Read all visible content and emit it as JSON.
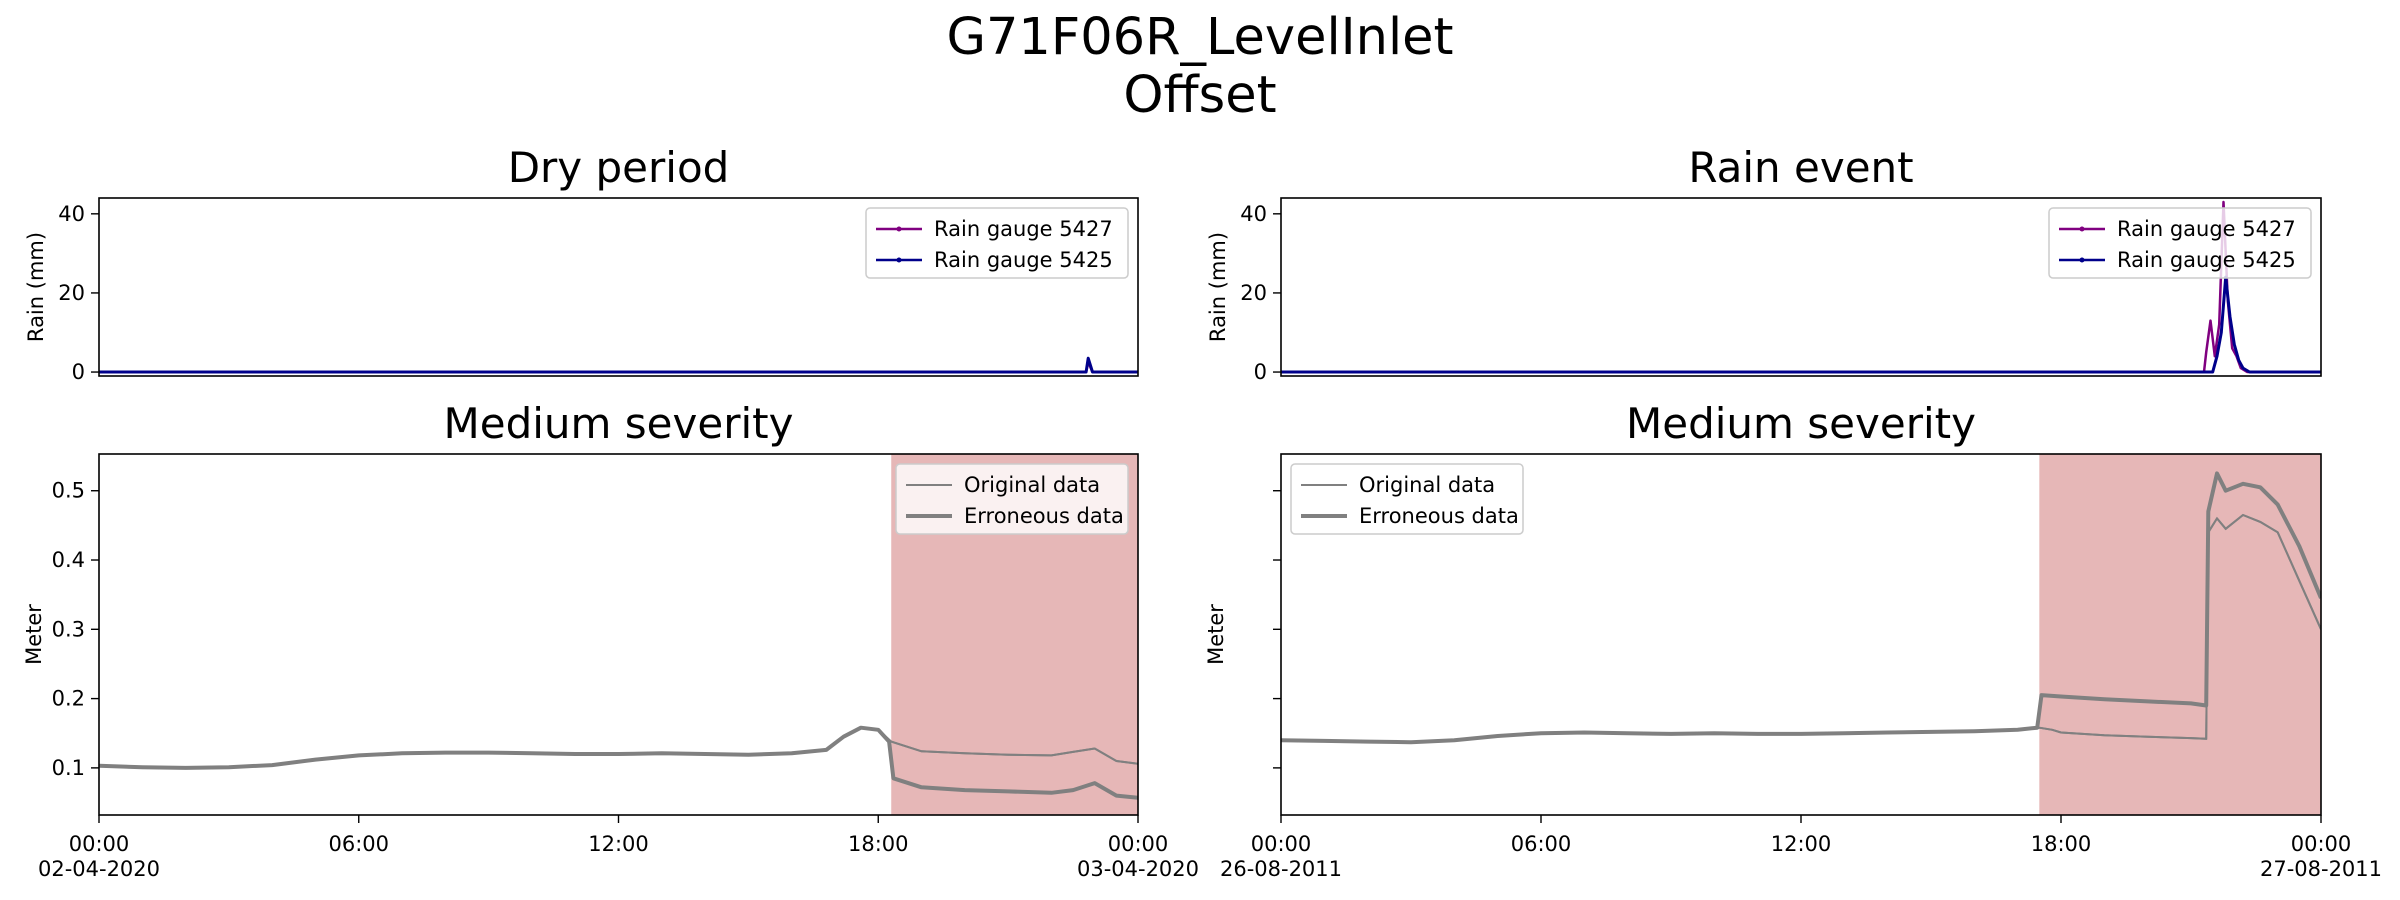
{
  "figure": {
    "title_line1": "G71F06R_LevelInlet",
    "title_line2": "Offset"
  },
  "colors": {
    "rain_5427": "#800080",
    "rain_5425": "#00008b",
    "original": "#808080",
    "erroneous": "#808080",
    "shade": "#cd7070"
  },
  "chart_data": [
    {
      "type": "line",
      "title": "Dry period",
      "ylabel": "Rain (mm)",
      "ylim": [
        -1,
        44
      ],
      "yticks": [
        0,
        20,
        40
      ],
      "legend": "upper right",
      "series": [
        {
          "name": "Rain gauge 5427",
          "x_hours": [
            0,
            22.8,
            22.85,
            22.95,
            24
          ],
          "values": [
            0,
            0,
            2.5,
            0,
            0
          ]
        },
        {
          "name": "Rain gauge 5425",
          "x_hours": [
            0,
            22.8,
            22.85,
            22.95,
            24
          ],
          "values": [
            0,
            0,
            3.5,
            0,
            0
          ]
        }
      ]
    },
    {
      "type": "line",
      "title": "Medium severity",
      "ylabel": "Meter",
      "ylim": [
        0.032,
        0.553
      ],
      "yticks": [
        0.1,
        0.2,
        0.3,
        0.4,
        0.5
      ],
      "xticks": [
        {
          "hour": 0,
          "label": "00:00",
          "date": "02-04-2020"
        },
        {
          "hour": 6,
          "label": "06:00",
          "date": ""
        },
        {
          "hour": 12,
          "label": "12:00",
          "date": ""
        },
        {
          "hour": 18,
          "label": "18:00",
          "date": ""
        },
        {
          "hour": 24,
          "label": "00:00",
          "date": "03-04-2020"
        }
      ],
      "legend": "upper right",
      "shaded_region_hours": [
        18.3,
        24
      ],
      "series": [
        {
          "name": "Original data",
          "x_hours": [
            0,
            1,
            2,
            3,
            4,
            5,
            6,
            7,
            8,
            9,
            10,
            11,
            12,
            13,
            14,
            15,
            16,
            16.8,
            17.2,
            17.6,
            18,
            18.3,
            19,
            20,
            21,
            22,
            22.5,
            23,
            23.5,
            24
          ],
          "values": [
            0.103,
            0.101,
            0.1,
            0.101,
            0.104,
            0.112,
            0.118,
            0.121,
            0.122,
            0.122,
            0.121,
            0.12,
            0.12,
            0.121,
            0.12,
            0.119,
            0.121,
            0.126,
            0.145,
            0.158,
            0.155,
            0.138,
            0.124,
            0.121,
            0.119,
            0.118,
            0.123,
            0.128,
            0.11,
            0.106
          ]
        },
        {
          "name": "Erroneous data",
          "x_hours": [
            0,
            1,
            2,
            3,
            4,
            5,
            6,
            7,
            8,
            9,
            10,
            11,
            12,
            13,
            14,
            15,
            16,
            16.8,
            17.2,
            17.6,
            18,
            18.25,
            18.35,
            19,
            20,
            21,
            22,
            22.5,
            23,
            23.5,
            24
          ],
          "values": [
            0.103,
            0.101,
            0.1,
            0.101,
            0.104,
            0.112,
            0.118,
            0.121,
            0.122,
            0.122,
            0.121,
            0.12,
            0.12,
            0.121,
            0.12,
            0.119,
            0.121,
            0.126,
            0.145,
            0.158,
            0.155,
            0.138,
            0.085,
            0.072,
            0.068,
            0.066,
            0.064,
            0.068,
            0.078,
            0.06,
            0.057
          ]
        }
      ]
    },
    {
      "type": "line",
      "title": "Rain event",
      "ylabel": "Rain (mm)",
      "ylim": [
        -1,
        44
      ],
      "yticks": [
        0,
        20,
        40
      ],
      "legend": "upper right",
      "series": [
        {
          "name": "Rain gauge 5427",
          "x_hours": [
            0,
            21.3,
            21.35,
            21.45,
            21.55,
            21.65,
            21.75,
            21.85,
            21.95,
            22.05,
            22.15,
            22.3,
            24
          ],
          "values": [
            0,
            0,
            5,
            13,
            4,
            12,
            43,
            18,
            6,
            4,
            1,
            0,
            0
          ]
        },
        {
          "name": "Rain gauge 5425",
          "x_hours": [
            0,
            21.5,
            21.6,
            21.7,
            21.8,
            21.9,
            22.0,
            22.1,
            22.2,
            22.35,
            24
          ],
          "values": [
            0,
            0,
            4,
            10,
            24,
            14,
            7,
            3,
            1,
            0,
            0
          ]
        }
      ]
    },
    {
      "type": "line",
      "title": "Medium severity",
      "ylabel": "Meter",
      "ylim": [
        0.032,
        0.553
      ],
      "yticks": [
        0.1,
        0.2,
        0.3,
        0.4,
        0.5
      ],
      "xticks": [
        {
          "hour": 0,
          "label": "00:00",
          "date": "26-08-2011"
        },
        {
          "hour": 6,
          "label": "06:00",
          "date": ""
        },
        {
          "hour": 12,
          "label": "12:00",
          "date": ""
        },
        {
          "hour": 18,
          "label": "18:00",
          "date": ""
        },
        {
          "hour": 24,
          "label": "00:00",
          "date": "27-08-2011"
        }
      ],
      "legend": "upper left",
      "shaded_region_hours": [
        17.5,
        24
      ],
      "series": [
        {
          "name": "Original data",
          "x_hours": [
            0,
            1,
            2,
            3,
            4,
            5,
            6,
            7,
            8,
            9,
            10,
            11,
            12,
            13,
            14,
            15,
            16,
            17,
            17.5,
            17.8,
            18,
            19,
            20,
            21,
            21.35,
            21.4,
            21.6,
            21.8,
            22.2,
            22.6,
            23,
            23.5,
            24
          ],
          "values": [
            0.14,
            0.139,
            0.138,
            0.137,
            0.14,
            0.146,
            0.15,
            0.151,
            0.15,
            0.149,
            0.15,
            0.149,
            0.149,
            0.15,
            0.151,
            0.152,
            0.153,
            0.155,
            0.158,
            0.155,
            0.151,
            0.147,
            0.145,
            0.143,
            0.142,
            0.44,
            0.46,
            0.445,
            0.465,
            0.455,
            0.44,
            0.37,
            0.3
          ]
        },
        {
          "name": "Erroneous data",
          "x_hours": [
            0,
            1,
            2,
            3,
            4,
            5,
            6,
            7,
            8,
            9,
            10,
            11,
            12,
            13,
            14,
            15,
            16,
            17,
            17.45,
            17.55,
            18,
            19,
            20,
            21,
            21.35,
            21.4,
            21.6,
            21.8,
            22.2,
            22.6,
            23,
            23.5,
            24
          ],
          "values": [
            0.14,
            0.139,
            0.138,
            0.137,
            0.14,
            0.146,
            0.15,
            0.151,
            0.15,
            0.149,
            0.15,
            0.149,
            0.149,
            0.15,
            0.151,
            0.152,
            0.153,
            0.155,
            0.158,
            0.205,
            0.203,
            0.199,
            0.196,
            0.193,
            0.19,
            0.47,
            0.525,
            0.5,
            0.51,
            0.505,
            0.48,
            0.42,
            0.345
          ]
        }
      ]
    }
  ]
}
